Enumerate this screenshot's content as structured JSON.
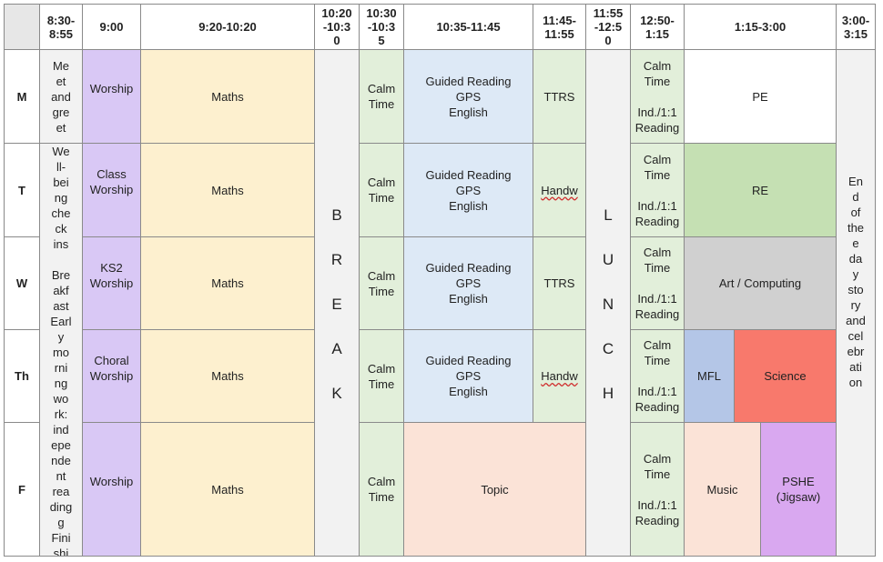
{
  "headers": {
    "time_830": "8:30-\n8:55",
    "time_900": "9:00",
    "time_920": "9:20-10:20",
    "time_1020": "10:20\n-10:3\n0",
    "time_1030": "10:30\n-10:3\n5",
    "time_1035": "10:35-11:45",
    "time_1145": "11:45-\n11:55",
    "time_1155": "11:55\n-12:5\n0",
    "time_1250": "12:50-\n1:15",
    "time_115": "1:15-3:00",
    "time_300": "3:00-\n3:15"
  },
  "days": {
    "mon": "M",
    "tue": "T",
    "wed": "W",
    "thu": "Th",
    "fri": "F"
  },
  "column_830": {
    "mon": "Me\net\nand\ngre\net",
    "rest": "We\nll-\nbei\nng\nche\nck\nins\n\nBre\nakf\nast\nEarl\ny\nmo\nrni\nng\nwo\nrk:\nind\nepe\nnde\nnt\nrea\nding\ng\nFini\nshi"
  },
  "worship": {
    "mon": "Worship",
    "tue": "Class\nWorship",
    "wed": "KS2\nWorship",
    "thu": "Choral\nWorship",
    "fri": "Worship"
  },
  "maths": {
    "mon": "Maths",
    "tue": "Maths",
    "wed": "Maths",
    "thu": "Maths",
    "fri": "Maths"
  },
  "break_text": "B\nR\nE\nA\nK",
  "calm": {
    "mon": "Calm\nTime",
    "tue": "Calm\nTime",
    "wed": "Calm\nTime",
    "thu": "Calm\nTime",
    "fri": "Calm\nTime"
  },
  "guided": {
    "mon": "Guided Reading\nGPS\nEnglish",
    "tue": "Guided Reading\nGPS\nEnglish",
    "wed": "Guided Reading\nGPS\nEnglish",
    "thu": "Guided Reading\nGPS\nEnglish",
    "fri_topic": "Topic"
  },
  "slot_1145": {
    "mon": "TTRS",
    "tue": "Handw",
    "wed": "TTRS",
    "thu": "Handw"
  },
  "lunch_text": "L\nU\nN\nC\nH",
  "reading": {
    "mon": "Calm\nTime\n\nInd./1:1\nReading",
    "tue": "Calm\nTime\n\nInd./1:1\nReading",
    "wed": "Calm\nTime\n\nInd./1:1\nReading",
    "thu": "Calm\nTime\n\nInd./1:1\nReading",
    "fri": "Calm\nTime\n\nInd./1:1\nReading"
  },
  "afternoon": {
    "mon": "PE",
    "tue": "RE",
    "wed": "Art / Computing",
    "thu_mfl": "MFL",
    "thu_science": "Science",
    "fri_music": "Music",
    "fri_pshe": "PSHE\n(Jigsaw)"
  },
  "end_of_day": "En\nd\nof\nthe\ne\nda\ny\nsto\nry\nand\ncel\nebr\nati\non",
  "colors": {
    "worship": "#d9c8f5",
    "maths": "#fdf0cf",
    "calm": "#e2efda",
    "guided": "#dde9f6",
    "topic": "#fbe3d7",
    "re": "#c5e0b3",
    "art": "#d0d0d0",
    "mfl": "#b4c6e7",
    "science": "#f8796c",
    "pshe": "#d9a8f0",
    "header_corner": "#e7e7e7",
    "grey_col": "#f2f2f2"
  }
}
